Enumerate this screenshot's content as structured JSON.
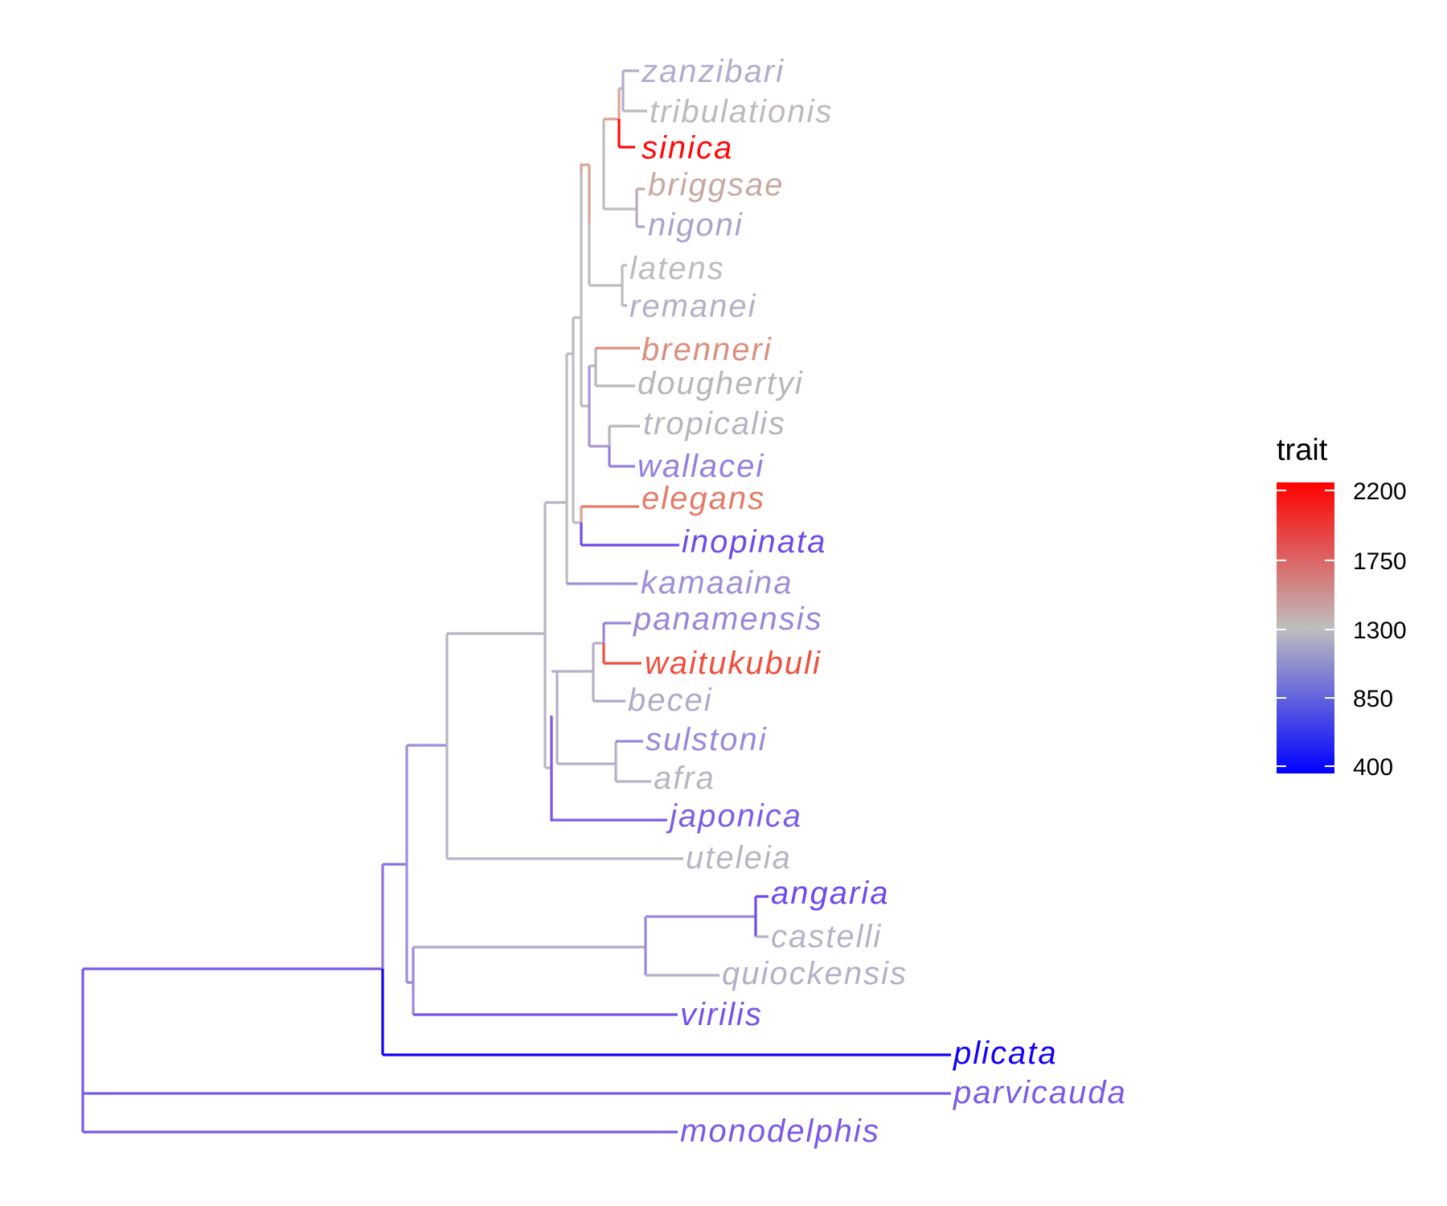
{
  "figure": {
    "type": "phylogenetic-tree",
    "style": "rectangular cladogram, branches and tips colored by trait"
  },
  "legend": {
    "title": "trait",
    "ticks": [
      "2200",
      "1750",
      "1300",
      "850",
      "400"
    ],
    "colors": {
      "low": "#0000ff",
      "mid": "#bebebe",
      "high": "#ff0000"
    }
  },
  "tips": [
    {
      "name": "zanzibari",
      "color": "#b3abcc"
    },
    {
      "name": "tribulationis",
      "color": "#bfb8bd"
    },
    {
      "name": "sinica",
      "color": "#ff0a0a"
    },
    {
      "name": "briggsae",
      "color": "#c8a9a2"
    },
    {
      "name": "nigoni",
      "color": "#aaa4cc"
    },
    {
      "name": "latens",
      "color": "#bcbcc1"
    },
    {
      "name": "remanei",
      "color": "#b5b0c6"
    },
    {
      "name": "brenneri",
      "color": "#dc8e7e"
    },
    {
      "name": "doughertyi",
      "color": "#b8b6b9"
    },
    {
      "name": "tropicalis",
      "color": "#b7b4bd"
    },
    {
      "name": "wallacei",
      "color": "#957fdf"
    },
    {
      "name": "elegans",
      "color": "#e57b66"
    },
    {
      "name": "inopinata",
      "color": "#6f4aea"
    },
    {
      "name": "kamaaina",
      "color": "#a08ed8"
    },
    {
      "name": "panamensis",
      "color": "#9a85dc"
    },
    {
      "name": "waitukubuli",
      "color": "#f04f3c"
    },
    {
      "name": "becei",
      "color": "#b1aac8"
    },
    {
      "name": "sulstoni",
      "color": "#9c88db"
    },
    {
      "name": "afra",
      "color": "#bab5c2"
    },
    {
      "name": "japonica",
      "color": "#7d5ce7"
    },
    {
      "name": "uteleia",
      "color": "#b9b4c3"
    },
    {
      "name": "angaria",
      "color": "#6f48f0"
    },
    {
      "name": "castelli",
      "color": "#b7b2c5"
    },
    {
      "name": "quiockensis",
      "color": "#b5b0c7"
    },
    {
      "name": "virilis",
      "color": "#7650ea"
    },
    {
      "name": "plicata",
      "color": "#1400fb"
    },
    {
      "name": "parvicauda",
      "color": "#7c5ae8"
    },
    {
      "name": "monodelphis",
      "color": "#7b58e8"
    }
  ]
}
